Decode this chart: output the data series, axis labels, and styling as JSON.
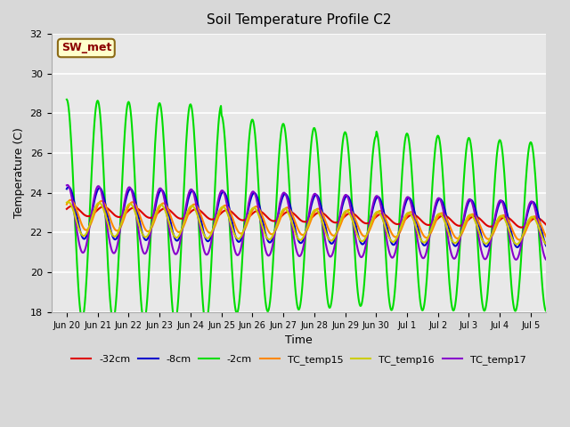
{
  "title": "Soil Temperature Profile C2",
  "xlabel": "Time",
  "ylabel": "Temperature (C)",
  "ylim": [
    18,
    32
  ],
  "plot_bg_color": "#e8e8e8",
  "fig_bg_color": "#d8d8d8",
  "annotation_text": "SW_met",
  "annotation_color": "#8b0000",
  "annotation_bg": "#ffffcc",
  "annotation_border": "#8b6914",
  "series": {
    "-32cm": {
      "color": "#dd0000",
      "linewidth": 1.5
    },
    "-8cm": {
      "color": "#0000cc",
      "linewidth": 1.5
    },
    "-2cm": {
      "color": "#00dd00",
      "linewidth": 1.5
    },
    "TC_temp15": {
      "color": "#ff8800",
      "linewidth": 1.5
    },
    "TC_temp16": {
      "color": "#cccc00",
      "linewidth": 1.5
    },
    "TC_temp17": {
      "color": "#8800cc",
      "linewidth": 1.5
    }
  },
  "xtick_labels": [
    "Jun 20",
    "Jun 21",
    "Jun 22",
    "Jun 23",
    "Jun 24",
    "Jun 25",
    "Jun 26",
    "Jun 27",
    "Jun 28",
    "Jun 29",
    "Jun 30",
    "Jul 1",
    "Jul 2",
    "Jul 3",
    "Jul 4",
    "Jul 5"
  ],
  "xtick_pos": [
    0,
    1,
    2,
    3,
    4,
    5,
    6,
    7,
    8,
    9,
    10,
    11,
    12,
    13,
    14,
    15
  ],
  "ytick_values": [
    18,
    20,
    22,
    24,
    26,
    28,
    30,
    32
  ]
}
